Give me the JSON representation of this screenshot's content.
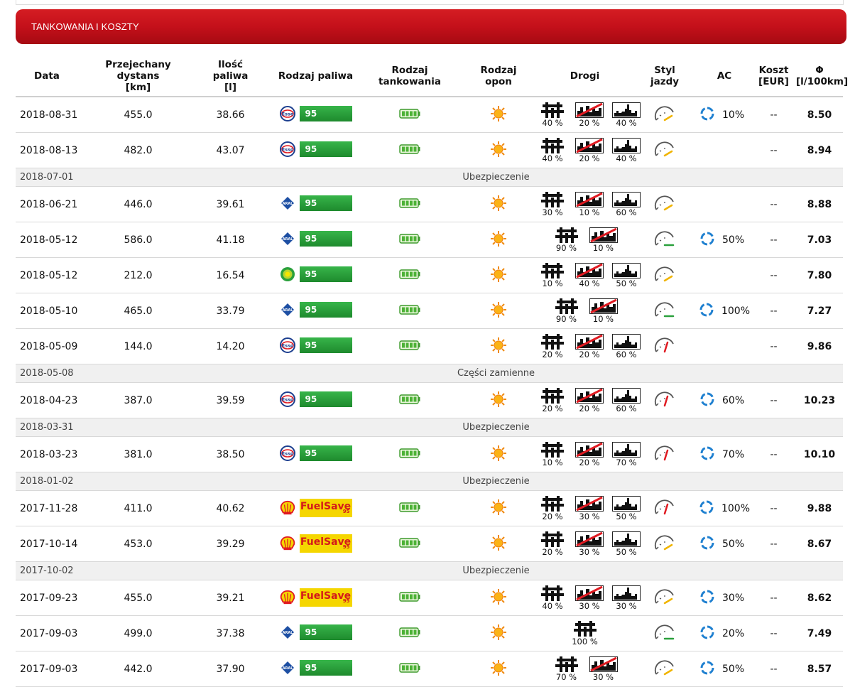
{
  "panel": {
    "title": "TANKOWANIA I KOSZTY"
  },
  "columns": {
    "date": "Data",
    "distance": [
      "Przejechany",
      "dystans",
      "[km]"
    ],
    "fuel_amount": [
      "Ilość",
      "paliwa",
      "[l]"
    ],
    "fuel_type": "Rodzaj paliwa",
    "refuel_type": [
      "Rodzaj",
      "tankowania"
    ],
    "tyre_type": [
      "Rodzaj",
      "opon"
    ],
    "roads": "Drogi",
    "driving_style": [
      "Styl",
      "jazdy"
    ],
    "ac": "AC",
    "cost": [
      "Koszt",
      "[EUR]"
    ],
    "avg": [
      "Φ",
      "[l/100km]"
    ]
  },
  "colors": {
    "header_red": "#c4101a",
    "fuel_green": "#2aa03c",
    "fuelsave_yellow": "#f5d600"
  },
  "rows": [
    {
      "kind": "data",
      "date": "2018-08-31",
      "distance": "455.0",
      "fuel": "38.66",
      "brand": "esso",
      "fuel_label": "95",
      "roads": [
        {
          "type": "highway",
          "pct": "40 %"
        },
        {
          "type": "city",
          "pct": "20 %"
        },
        {
          "type": "country",
          "pct": "40 %"
        }
      ],
      "style": "yellow",
      "ac": "10%",
      "cost": "--",
      "avg": "8.50"
    },
    {
      "kind": "data",
      "date": "2018-08-13",
      "distance": "482.0",
      "fuel": "43.07",
      "brand": "esso",
      "fuel_label": "95",
      "roads": [
        {
          "type": "highway",
          "pct": "40 %"
        },
        {
          "type": "city",
          "pct": "20 %"
        },
        {
          "type": "country",
          "pct": "40 %"
        }
      ],
      "style": "yellow",
      "ac": "",
      "cost": "--",
      "avg": "8.94"
    },
    {
      "kind": "event",
      "date": "2018-07-01",
      "label": "Ubezpieczenie"
    },
    {
      "kind": "data",
      "date": "2018-06-21",
      "distance": "446.0",
      "fuel": "39.61",
      "brand": "aral",
      "fuel_label": "95",
      "roads": [
        {
          "type": "highway",
          "pct": "30 %"
        },
        {
          "type": "city",
          "pct": "10 %"
        },
        {
          "type": "country",
          "pct": "60 %"
        }
      ],
      "style": "yellow",
      "ac": "",
      "cost": "--",
      "avg": "8.88"
    },
    {
      "kind": "data",
      "date": "2018-05-12",
      "distance": "586.0",
      "fuel": "41.18",
      "brand": "aral",
      "fuel_label": "95",
      "roads": [
        {
          "type": "highway",
          "pct": "90 %"
        },
        {
          "type": "city",
          "pct": "10 %"
        }
      ],
      "style": "green",
      "ac": "50%",
      "cost": "--",
      "avg": "7.03"
    },
    {
      "kind": "data",
      "date": "2018-05-12",
      "distance": "212.0",
      "fuel": "16.54",
      "brand": "bp",
      "fuel_label": "95",
      "roads": [
        {
          "type": "highway",
          "pct": "10 %"
        },
        {
          "type": "city",
          "pct": "40 %"
        },
        {
          "type": "country",
          "pct": "50 %"
        }
      ],
      "style": "yellow",
      "ac": "",
      "cost": "--",
      "avg": "7.80"
    },
    {
      "kind": "data",
      "date": "2018-05-10",
      "distance": "465.0",
      "fuel": "33.79",
      "brand": "aral",
      "fuel_label": "95",
      "roads": [
        {
          "type": "highway",
          "pct": "90 %"
        },
        {
          "type": "city",
          "pct": "10 %"
        }
      ],
      "style": "green",
      "ac": "100%",
      "cost": "--",
      "avg": "7.27"
    },
    {
      "kind": "data",
      "date": "2018-05-09",
      "distance": "144.0",
      "fuel": "14.20",
      "brand": "esso",
      "fuel_label": "95",
      "roads": [
        {
          "type": "highway",
          "pct": "20 %"
        },
        {
          "type": "city",
          "pct": "20 %"
        },
        {
          "type": "country",
          "pct": "60 %"
        }
      ],
      "style": "red",
      "ac": "",
      "cost": "--",
      "avg": "9.86"
    },
    {
      "kind": "event",
      "date": "2018-05-08",
      "label": "Części zamienne"
    },
    {
      "kind": "data",
      "date": "2018-04-23",
      "distance": "387.0",
      "fuel": "39.59",
      "brand": "esso",
      "fuel_label": "95",
      "roads": [
        {
          "type": "highway",
          "pct": "20 %"
        },
        {
          "type": "city",
          "pct": "20 %"
        },
        {
          "type": "country",
          "pct": "60 %"
        }
      ],
      "style": "red",
      "ac": "60%",
      "cost": "--",
      "avg": "10.23"
    },
    {
      "kind": "event",
      "date": "2018-03-31",
      "label": "Ubezpieczenie"
    },
    {
      "kind": "data",
      "date": "2018-03-23",
      "distance": "381.0",
      "fuel": "38.50",
      "brand": "esso",
      "fuel_label": "95",
      "roads": [
        {
          "type": "highway",
          "pct": "10 %"
        },
        {
          "type": "city",
          "pct": "20 %"
        },
        {
          "type": "country",
          "pct": "70 %"
        }
      ],
      "style": "red",
      "ac": "70%",
      "cost": "--",
      "avg": "10.10"
    },
    {
      "kind": "event",
      "date": "2018-01-02",
      "label": "Ubezpieczenie"
    },
    {
      "kind": "data",
      "date": "2017-11-28",
      "distance": "411.0",
      "fuel": "40.62",
      "brand": "shell",
      "fuel_label": "FuelSave",
      "fuel_sub": "95",
      "roads": [
        {
          "type": "highway",
          "pct": "20 %"
        },
        {
          "type": "city",
          "pct": "30 %"
        },
        {
          "type": "country",
          "pct": "50 %"
        }
      ],
      "style": "red",
      "ac": "100%",
      "cost": "--",
      "avg": "9.88"
    },
    {
      "kind": "data",
      "date": "2017-10-14",
      "distance": "453.0",
      "fuel": "39.29",
      "brand": "shell",
      "fuel_label": "FuelSave",
      "fuel_sub": "95",
      "roads": [
        {
          "type": "highway",
          "pct": "20 %"
        },
        {
          "type": "city",
          "pct": "30 %"
        },
        {
          "type": "country",
          "pct": "50 %"
        }
      ],
      "style": "yellow",
      "ac": "50%",
      "cost": "--",
      "avg": "8.67"
    },
    {
      "kind": "event",
      "date": "2017-10-02",
      "label": "Ubezpieczenie"
    },
    {
      "kind": "data",
      "date": "2017-09-23",
      "distance": "455.0",
      "fuel": "39.21",
      "brand": "shell",
      "fuel_label": "FuelSave",
      "fuel_sub": "95",
      "roads": [
        {
          "type": "highway",
          "pct": "40 %"
        },
        {
          "type": "city",
          "pct": "30 %"
        },
        {
          "type": "country",
          "pct": "30 %"
        }
      ],
      "style": "yellow",
      "ac": "30%",
      "cost": "--",
      "avg": "8.62"
    },
    {
      "kind": "data",
      "date": "2017-09-03",
      "distance": "499.0",
      "fuel": "37.38",
      "brand": "aral",
      "fuel_label": "95",
      "roads": [
        {
          "type": "highway",
          "pct": "100 %"
        }
      ],
      "style": "green",
      "ac": "20%",
      "cost": "--",
      "avg": "7.49"
    },
    {
      "kind": "data",
      "date": "2017-09-03",
      "distance": "442.0",
      "fuel": "37.90",
      "brand": "aral",
      "fuel_label": "95",
      "roads": [
        {
          "type": "highway",
          "pct": "70 %"
        },
        {
          "type": "city",
          "pct": "30 %"
        }
      ],
      "style": "yellow",
      "ac": "50%",
      "cost": "--",
      "avg": "8.57"
    }
  ]
}
